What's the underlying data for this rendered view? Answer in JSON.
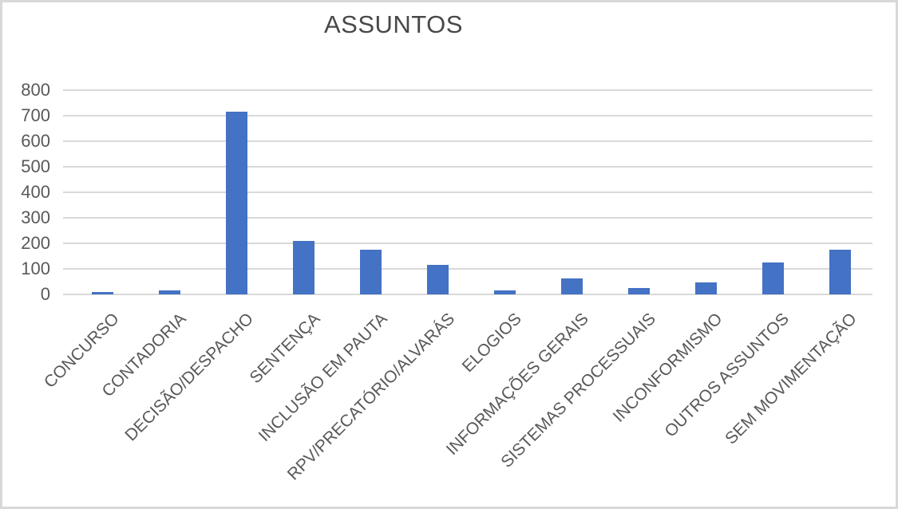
{
  "chart_data": {
    "type": "bar",
    "title": "ASSUNTOS",
    "categories": [
      "CONCURSO",
      "CONTADORIA",
      "DECISÃO/DESPACHO",
      "SENTENÇA",
      "INCLUSÃO EM PAUTA",
      "RPV/PRECATÓRIO/ALVARÁS",
      "ELOGIOS",
      "INFORMAÇÕES GERAIS",
      "SISTEMAS PROCESSUAIS",
      "INCONFORMISMO",
      "OUTROS ASSUNTOS",
      "SEM MOVIMENTAÇÃO"
    ],
    "values": [
      8,
      16,
      717,
      208,
      175,
      115,
      15,
      62,
      25,
      48,
      124,
      175
    ],
    "xlabel": "",
    "ylabel": "",
    "ylim": [
      0,
      800
    ],
    "ytick_step": 100,
    "yticks": [
      0,
      100,
      200,
      300,
      400,
      500,
      600,
      700,
      800
    ],
    "grid": true,
    "legend": false,
    "bar_color": "#4472C4",
    "gridline_color": "#D9D9D9",
    "text_color": "#595959",
    "title_color": "#484848",
    "background": "#FFFFFF",
    "border_color": "#D8D8D8"
  }
}
